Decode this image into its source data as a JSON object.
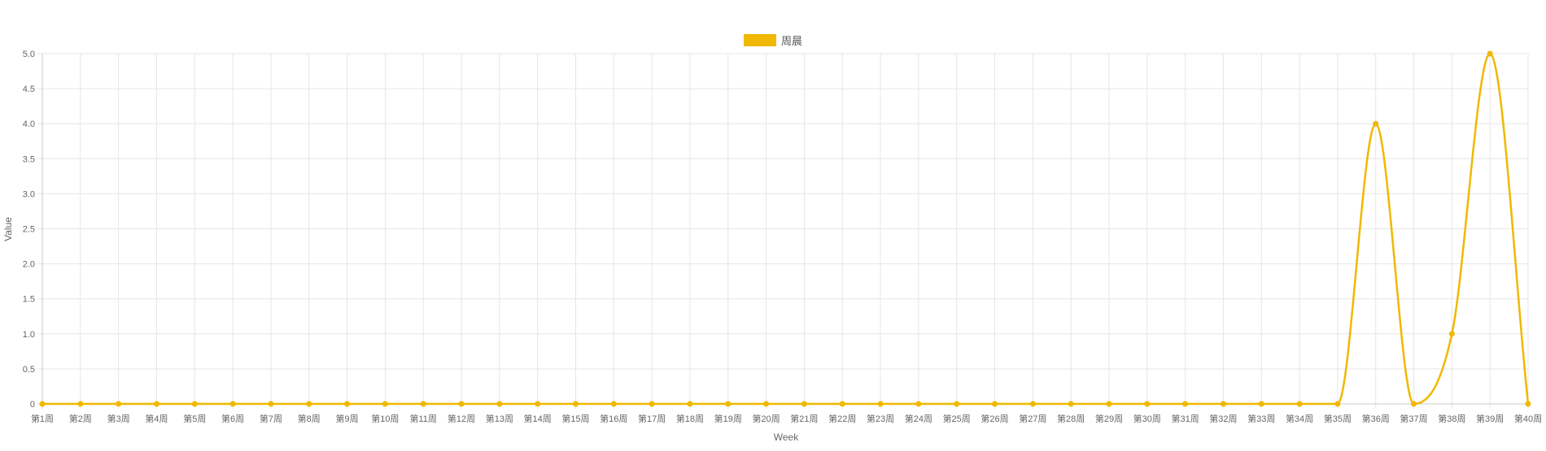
{
  "chart_data": {
    "type": "line",
    "title": "",
    "xlabel": "Week",
    "ylabel": "Value",
    "ylim": [
      0,
      5
    ],
    "y_ticks": [
      0,
      0.5,
      1.0,
      1.5,
      2.0,
      2.5,
      3.0,
      3.5,
      4.0,
      4.5,
      5.0
    ],
    "y_tick_labels": [
      "0",
      "0.5",
      "1.0",
      "1.5",
      "2.0",
      "2.5",
      "3.0",
      "3.5",
      "4.0",
      "4.5",
      "5.0"
    ],
    "grid": true,
    "legend_position": "top-center",
    "categories": [
      "第1周",
      "第2周",
      "第3周",
      "第4周",
      "第5周",
      "第6周",
      "第7周",
      "第8周",
      "第9周",
      "第10周",
      "第11周",
      "第12周",
      "第13周",
      "第14周",
      "第15周",
      "第16周",
      "第17周",
      "第18周",
      "第19周",
      "第20周",
      "第21周",
      "第22周",
      "第23周",
      "第24周",
      "第25周",
      "第26周",
      "第27周",
      "第28周",
      "第29周",
      "第30周",
      "第31周",
      "第32周",
      "第33周",
      "第34周",
      "第35周",
      "第36周",
      "第37周",
      "第38周",
      "第39周",
      "第40周"
    ],
    "series": [
      {
        "name": "周晨",
        "color": "#f0b800",
        "values": [
          0,
          0,
          0,
          0,
          0,
          0,
          0,
          0,
          0,
          0,
          0,
          0,
          0,
          0,
          0,
          0,
          0,
          0,
          0,
          0,
          0,
          0,
          0,
          0,
          0,
          0,
          0,
          0,
          0,
          0,
          0,
          0,
          0,
          0,
          0,
          4,
          0,
          1,
          5,
          0
        ]
      }
    ]
  }
}
